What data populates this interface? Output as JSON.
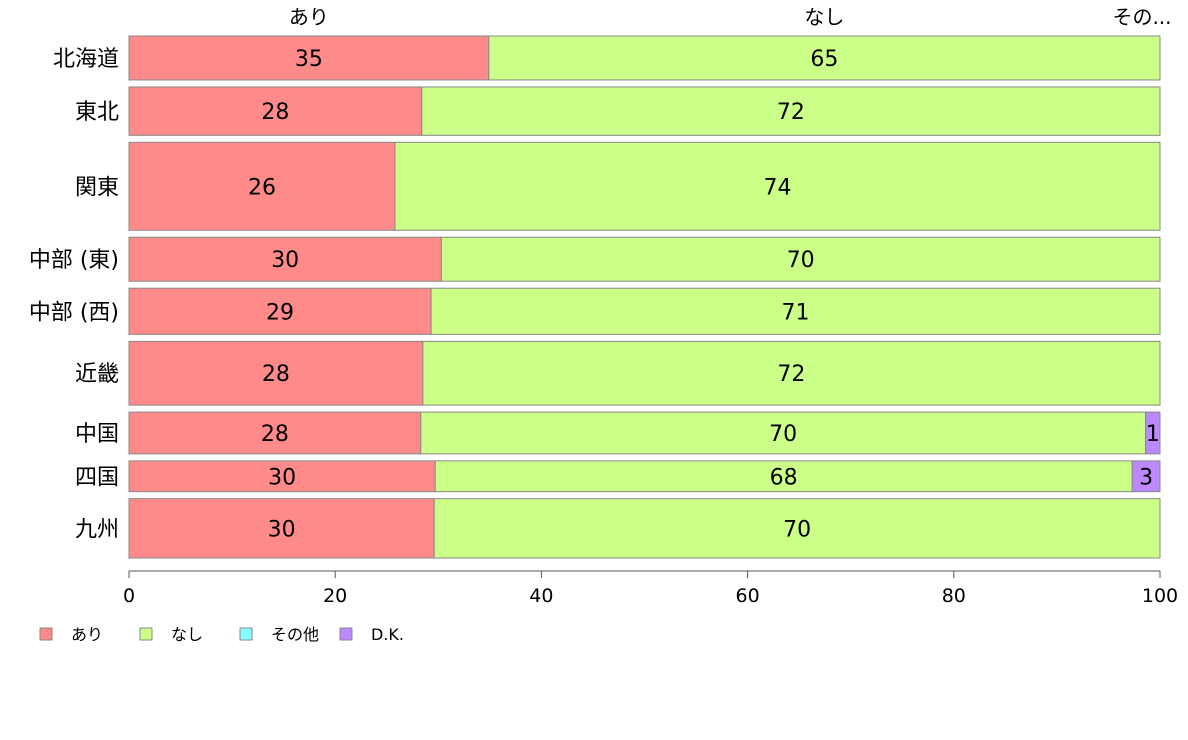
{
  "chart_data": {
    "type": "bar",
    "orientation": "horizontal",
    "stacked": true,
    "categories": [
      "北海道",
      "東北",
      "関東",
      "中部 (東)",
      "中部 (西)",
      "近畿",
      "中国",
      "四国",
      "九州"
    ],
    "category_weights": [
      1.0,
      1.1,
      2.0,
      1.0,
      1.05,
      1.45,
      0.95,
      0.7,
      1.35
    ],
    "series": [
      {
        "name": "あり",
        "color": "#ff8a8a",
        "values": [
          34.9,
          28.4,
          25.8,
          30.3,
          29.3,
          28.5,
          28.3,
          29.7,
          29.6
        ]
      },
      {
        "name": "なし",
        "color": "#ccff88",
        "values": [
          65.1,
          71.6,
          74.2,
          69.7,
          70.7,
          71.5,
          70.3,
          67.6,
          70.4
        ]
      },
      {
        "name": "その他",
        "color": "#88ffff",
        "values": [
          0,
          0,
          0,
          0,
          0,
          0,
          0,
          0,
          0
        ]
      },
      {
        "name": "D.K.",
        "color": "#bb88ff",
        "values": [
          0,
          0,
          0,
          0,
          0,
          0,
          1.4,
          2.7,
          0
        ]
      }
    ],
    "data_labels": [
      [
        "35",
        "65",
        "",
        ""
      ],
      [
        "28",
        "72",
        "",
        ""
      ],
      [
        "26",
        "74",
        "",
        ""
      ],
      [
        "30",
        "70",
        "",
        ""
      ],
      [
        "29",
        "71",
        "",
        ""
      ],
      [
        "28",
        "72",
        "",
        ""
      ],
      [
        "28",
        "70",
        "",
        "1"
      ],
      [
        "30",
        "68",
        "",
        "3"
      ],
      [
        "30",
        "70",
        "",
        ""
      ]
    ],
    "top_labels": [
      "あり",
      "なし",
      "その..."
    ],
    "x_ticks": [
      0,
      20,
      40,
      60,
      80,
      100
    ],
    "xlim": [
      0,
      100
    ],
    "grid": false,
    "legend_position": "bottom-left"
  }
}
